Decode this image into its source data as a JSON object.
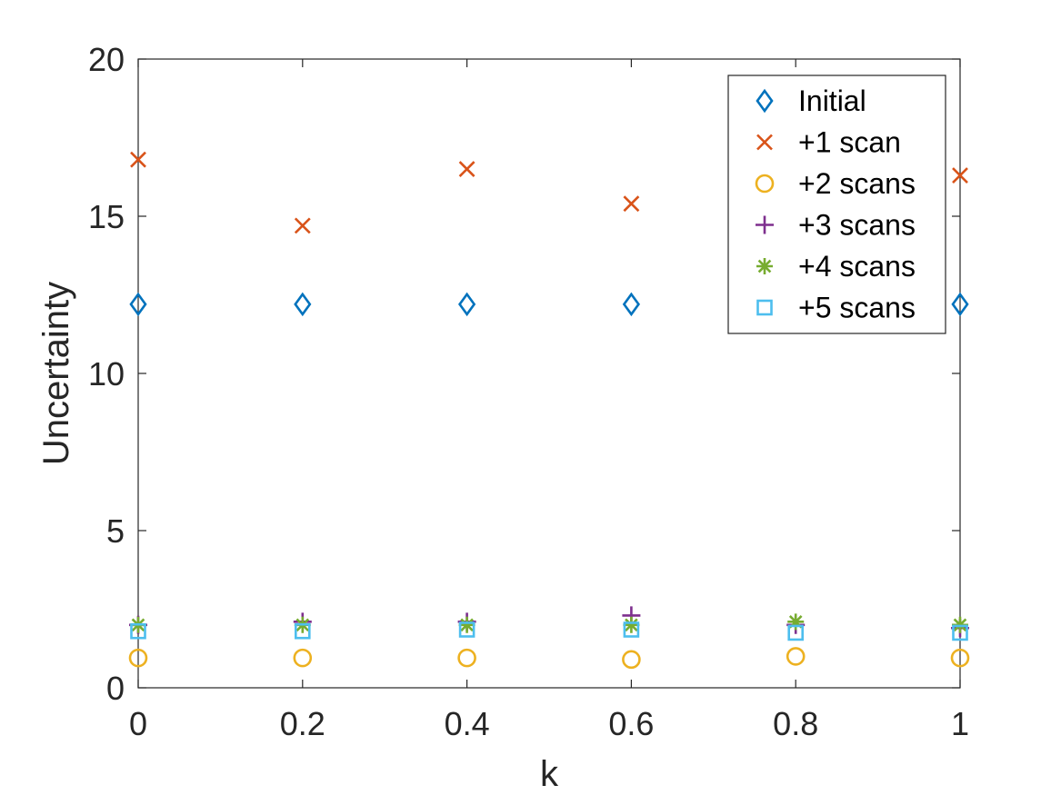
{
  "chart_data": {
    "type": "scatter",
    "xlabel": "k",
    "ylabel": "Uncertainty",
    "xlim": [
      0,
      1
    ],
    "ylim": [
      0,
      20
    ],
    "x_ticks": [
      0,
      0.2,
      0.4,
      0.6,
      0.8,
      1
    ],
    "x_tick_labels": [
      "0",
      "0.2",
      "0.4",
      "0.6",
      "0.8",
      "1"
    ],
    "y_ticks": [
      0,
      5,
      10,
      15,
      20
    ],
    "y_tick_labels": [
      "0",
      "5",
      "10",
      "15",
      "20"
    ],
    "grid": false,
    "legend_position": "top-right",
    "x": [
      0,
      0.2,
      0.4,
      0.6,
      0.8,
      1
    ],
    "series": [
      {
        "name": "Initial",
        "marker": "diamond",
        "color": "#0072BD",
        "values": [
          12.2,
          12.2,
          12.2,
          12.2,
          12.2,
          12.2
        ]
      },
      {
        "name": "+1 scan",
        "marker": "x",
        "color": "#D95319",
        "values": [
          16.8,
          14.7,
          16.5,
          15.4,
          null,
          16.3
        ]
      },
      {
        "name": "+2 scans",
        "marker": "circle",
        "color": "#EDB120",
        "values": [
          0.95,
          0.95,
          0.95,
          0.9,
          1.0,
          0.95
        ]
      },
      {
        "name": "+3 scans",
        "marker": "plus",
        "color": "#7E2F8E",
        "values": [
          2.0,
          2.1,
          2.1,
          2.3,
          2.0,
          1.9
        ]
      },
      {
        "name": "+4 scans",
        "marker": "asterisk",
        "color": "#77AC30",
        "values": [
          2.0,
          2.0,
          2.0,
          2.0,
          2.1,
          2.0
        ]
      },
      {
        "name": "+5 scans",
        "marker": "square",
        "color": "#4DBEEE",
        "values": [
          1.8,
          1.8,
          1.85,
          1.85,
          1.75,
          1.75
        ]
      }
    ]
  }
}
